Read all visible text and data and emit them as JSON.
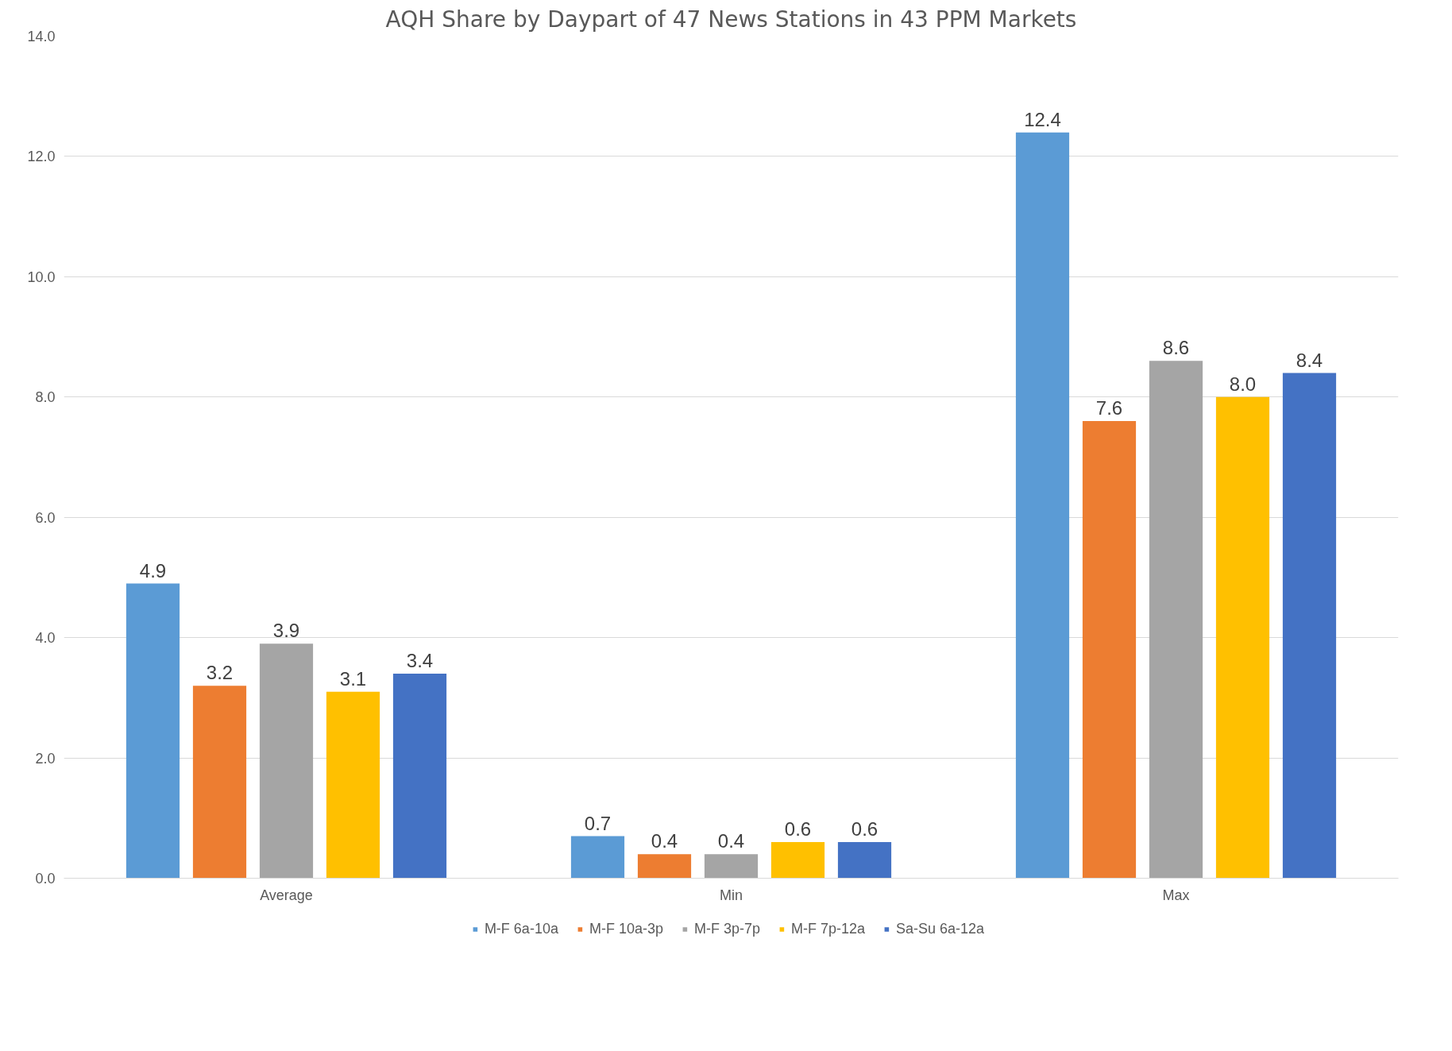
{
  "chart_data": {
    "type": "bar",
    "title": "AQH Share by Daypart of 47 News Stations in 43 PPM Markets",
    "categories": [
      "Average",
      "Min",
      "Max"
    ],
    "series": [
      {
        "name": "M-F 6a-10a",
        "color": "#5b9bd5",
        "values": [
          4.9,
          0.7,
          12.4
        ],
        "value_labels": [
          "4.9",
          "0.7",
          "12.4"
        ]
      },
      {
        "name": "M-F 10a-3p",
        "color": "#ed7d31",
        "values": [
          3.2,
          0.4,
          7.6
        ],
        "value_labels": [
          "3.2",
          "0.4",
          "7.6"
        ]
      },
      {
        "name": "M-F 3p-7p",
        "color": "#a5a5a5",
        "values": [
          3.9,
          0.4,
          8.6
        ],
        "value_labels": [
          "3.9",
          "0.4",
          "8.6"
        ]
      },
      {
        "name": "M-F 7p-12a",
        "color": "#ffc000",
        "values": [
          3.1,
          0.6,
          8.0
        ],
        "value_labels": [
          "3.1",
          "0.6",
          "8.0"
        ]
      },
      {
        "name": "Sa-Su 6a-12a",
        "color": "#4472c4",
        "values": [
          3.4,
          0.6,
          8.4
        ],
        "value_labels": [
          "3.4",
          "0.6",
          "8.4"
        ]
      }
    ],
    "ylim": [
      0,
      14
    ],
    "yticks": [
      {
        "value": 0,
        "label": "0.0"
      },
      {
        "value": 2,
        "label": "2.0"
      },
      {
        "value": 4,
        "label": "4.0"
      },
      {
        "value": 6,
        "label": "6.0"
      },
      {
        "value": 8,
        "label": "8.0"
      },
      {
        "value": 10,
        "label": "10.0"
      },
      {
        "value": 12,
        "label": "12.0"
      },
      {
        "value": 14,
        "label": "14.0"
      }
    ],
    "grid": "y",
    "legend": "bottom"
  }
}
